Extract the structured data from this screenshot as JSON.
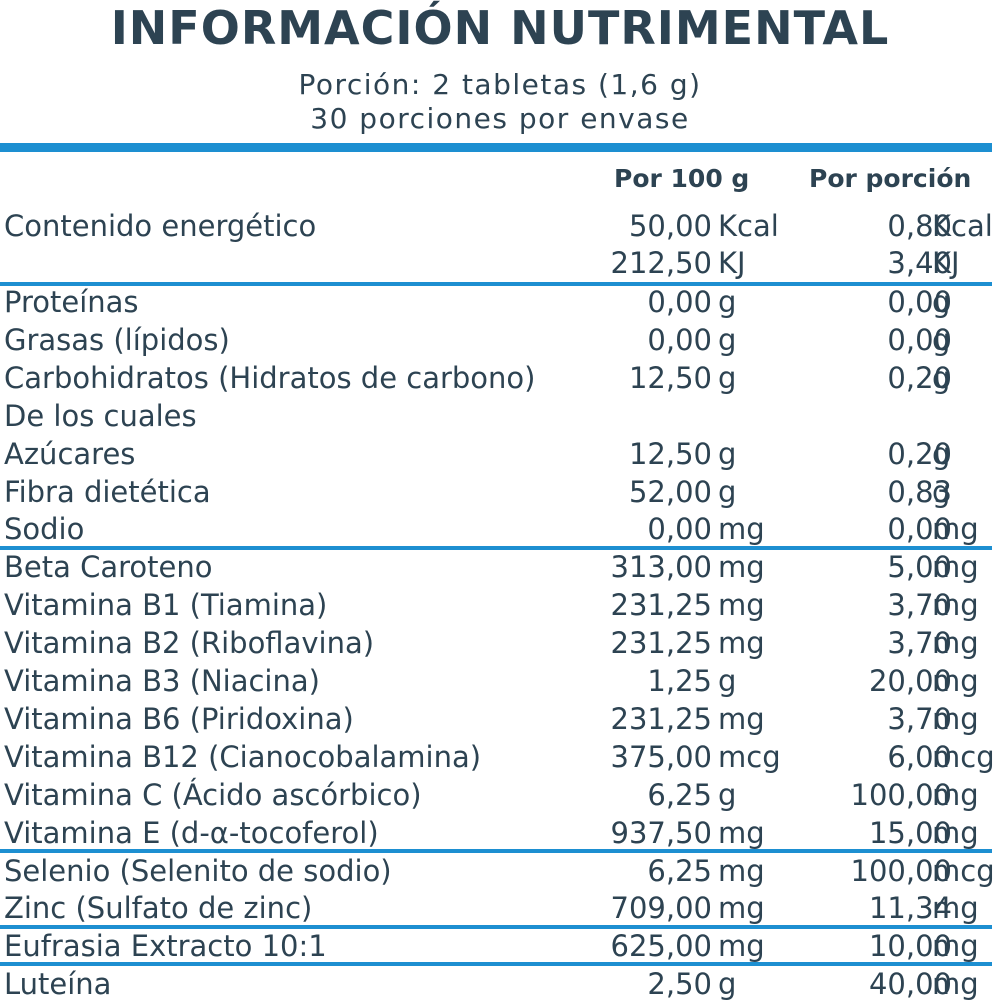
{
  "title": "INFORMACIÓN NUTRIMENTAL",
  "serving": "Porción: 2 tabletas (1,6 g)",
  "servings_per_container": "30 porciones por envase",
  "columns": {
    "per_100g": "Por 100 g",
    "per_serving": "Por porción"
  },
  "energy": {
    "label": "Contenido energético",
    "kcal": {
      "v1": "50,00",
      "v2": "0,80",
      "unit": "Kcal"
    },
    "kj": {
      "v1": "212,50",
      "v2": "3,40",
      "unit": "KJ"
    }
  },
  "rows": [
    {
      "label": "Proteínas",
      "v1": "0,00",
      "u1": "g",
      "v2": "0,00",
      "u2": "g"
    },
    {
      "label": "Grasas (lípidos)",
      "v1": "0,00",
      "u1": "g",
      "v2": "0,00",
      "u2": "g"
    },
    {
      "label": "Carbohidratos (Hidratos de carbono)",
      "v1": "12,50",
      "u1": "g",
      "v2": "0,20",
      "u2": "g"
    },
    {
      "label": "De los cuales",
      "v1": "",
      "u1": "",
      "v2": "",
      "u2": ""
    },
    {
      "label": "Azúcares",
      "v1": "12,50",
      "u1": "g",
      "v2": "0,20",
      "u2": "g"
    },
    {
      "label": "Fibra dietética",
      "v1": "52,00",
      "u1": "g",
      "v2": "0,83",
      "u2": "g"
    },
    {
      "label": "Sodio",
      "v1": "0,00",
      "u1": "mg",
      "v2": "0,00",
      "u2": "mg"
    },
    {
      "label": "Beta Caroteno",
      "v1": "313,00",
      "u1": "mg",
      "v2": "5,00",
      "u2": "mg"
    },
    {
      "label": "Vitamina B1 (Tiamina)",
      "v1": "231,25",
      "u1": "mg",
      "v2": "3,70",
      "u2": "mg"
    },
    {
      "label": "Vitamina B2 (Riboflavina)",
      "v1": "231,25",
      "u1": "mg",
      "v2": "3,70",
      "u2": "mg"
    },
    {
      "label": "Vitamina B3 (Niacina)",
      "v1": "1,25",
      "u1": "g",
      "v2": "20,00",
      "u2": "mg"
    },
    {
      "label": "Vitamina B6 (Piridoxina)",
      "v1": "231,25",
      "u1": "mg",
      "v2": "3,70",
      "u2": "mg"
    },
    {
      "label": "Vitamina B12 (Cianocobalamina)",
      "v1": "375,00",
      "u1": "mcg",
      "v2": "6,00",
      "u2": "mcg"
    },
    {
      "label": "Vitamina C (Ácido ascórbico)",
      "v1": "6,25",
      "u1": "g",
      "v2": "100,00",
      "u2": "mg"
    },
    {
      "label": "Vitamina E (d-α-tocoferol)",
      "v1": "937,50",
      "u1": "mg",
      "v2": "15,00",
      "u2": "mg"
    },
    {
      "label": "Selenio (Selenito de sodio)",
      "v1": "6,25",
      "u1": "mg",
      "v2": "100,00",
      "u2": "mcg"
    },
    {
      "label": "Zinc (Sulfato de zinc)",
      "v1": "709,00",
      "u1": "mg",
      "v2": "11,34",
      "u2": "mg"
    },
    {
      "label": "Eufrasia Extracto 10:1",
      "v1": "625,00",
      "u1": "mg",
      "v2": "10,00",
      "u2": "mg"
    },
    {
      "label": "Luteína",
      "v1": "2,50",
      "u1": "g",
      "v2": "40,00",
      "u2": "mg"
    }
  ],
  "colors": {
    "text": "#2d4352",
    "rule": "#1d8fd1"
  }
}
